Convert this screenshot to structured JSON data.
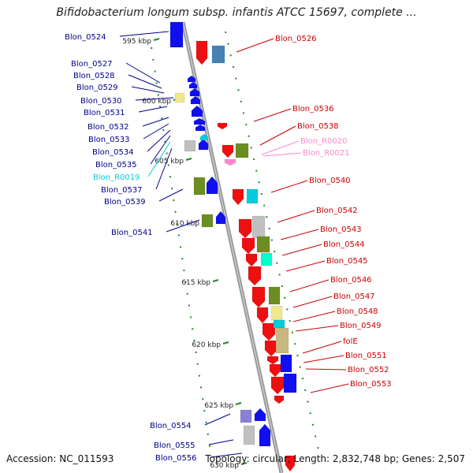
{
  "title": "Bifidobacterium longum subsp. infantis ATCC 15697, complete ...",
  "footer": {
    "accession": "Accession: NC_011593",
    "summary": "Topology: circular; Length: 2,832,748 bp; Genes: 2,507"
  },
  "colors": {
    "forward_gene": "#1010ee",
    "reverse_gene": "#ee1010",
    "forward_label": "#00008b",
    "reverse_label": "#cc0000",
    "rrna_reverse": "#ff88cc",
    "rrna_forward": "#00ccdd",
    "cog_tan": "#c8b880",
    "cog_olive": "#6b8e23",
    "cog_grey": "#c0c0c0",
    "cog_teal": "#00ffcc",
    "cog_steel": "#4682b4",
    "cog_yellow": "#f0e68c",
    "cog_violet": "#8a7fd6",
    "tick": "#228b22"
  },
  "kbp_ticks": [
    "595 kbp",
    "600 kbp",
    "605 kbp",
    "610 kbp",
    "615 kbp",
    "620 kbp",
    "625 kbp",
    "630 kbp"
  ],
  "forward_labels": [
    "Blon_0524",
    "Blon_0527",
    "Blon_0528",
    "Blon_0529",
    "Blon_0530",
    "Blon_0531",
    "Blon_0532",
    "Blon_0533",
    "Blon_0534",
    "Blon_0535",
    "Blon_R0019",
    "Blon_0537",
    "Blon_0539",
    "Blon_0541",
    "Blon_0554",
    "Blon_0555",
    "Blon_0556"
  ],
  "reverse_labels": [
    "Blon_0526",
    "Blon_0536",
    "Blon_0538",
    "Blon_R0020",
    "Blon_R0021",
    "Blon_0540",
    "Blon_0542",
    "Blon_0543",
    "Blon_0544",
    "Blon_0545",
    "Blon_0546",
    "Blon_0547",
    "Blon_0548",
    "Blon_0549",
    "folE",
    "Blon_0551",
    "Blon_0552",
    "Blon_0553"
  ]
}
